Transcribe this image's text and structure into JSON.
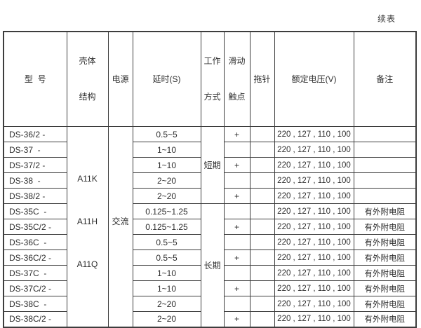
{
  "page_label": "续表",
  "table": {
    "headers": {
      "model": "型  号",
      "shell": [
        "壳体",
        "结构"
      ],
      "power": "电源",
      "delay": "延时(S)",
      "work_mode": [
        "工作",
        "方式"
      ],
      "sliding_contact": [
        "滑动",
        "触点"
      ],
      "drag_pin": "拖针",
      "rated_voltage": "额定电压(V)",
      "remark": "备注"
    },
    "shell_structure_labels": [
      "A11K",
      "A11H",
      "A11Q"
    ],
    "power_label": "交流",
    "work_modes": [
      {
        "label": "短期",
        "row_span": 5
      },
      {
        "label": "长期",
        "row_span": 8
      }
    ],
    "rows": [
      {
        "model": "DS-36/2 -",
        "delay": "0.5~5",
        "sliding_contact": "+",
        "drag_pin": "",
        "rated_voltage": "220 , 127 , 110 , 100",
        "remark": ""
      },
      {
        "model": "DS-37  -",
        "delay": "1~10",
        "sliding_contact": "",
        "drag_pin": "",
        "rated_voltage": "220 , 127 , 110 , 100",
        "remark": ""
      },
      {
        "model": "DS-37/2 -",
        "delay": "1~10",
        "sliding_contact": "+",
        "drag_pin": "",
        "rated_voltage": "220 , 127 , 110 , 100",
        "remark": ""
      },
      {
        "model": "DS-38  -",
        "delay": "2~20",
        "sliding_contact": "",
        "drag_pin": "",
        "rated_voltage": "220 , 127 , 110 , 100",
        "remark": ""
      },
      {
        "model": "DS-38/2 -",
        "delay": "2~20",
        "sliding_contact": "+",
        "drag_pin": "",
        "rated_voltage": "220 , 127 , 110 , 100",
        "remark": ""
      },
      {
        "model": "DS-35C  -",
        "delay": "0.125~1.25",
        "sliding_contact": "",
        "drag_pin": "",
        "rated_voltage": "220 , 127 , 110 , 100",
        "remark": "有外附电阻"
      },
      {
        "model": "DS-35C/2 -",
        "delay": "0.125~1.25",
        "sliding_contact": "+",
        "drag_pin": "",
        "rated_voltage": "220 , 127 , 110 , 100",
        "remark": "有外附电阻"
      },
      {
        "model": "DS-36C  -",
        "delay": "0.5~5",
        "sliding_contact": "",
        "drag_pin": "",
        "rated_voltage": "220 , 127 , 110 , 100",
        "remark": "有外附电阻"
      },
      {
        "model": "DS-36C/2 -",
        "delay": "0.5~5",
        "sliding_contact": "+",
        "drag_pin": "",
        "rated_voltage": "220 , 127 , 110 , 100",
        "remark": "有外附电阻"
      },
      {
        "model": "DS-37C  -",
        "delay": "1~10",
        "sliding_contact": "",
        "drag_pin": "",
        "rated_voltage": "220 , 127 , 110 , 100",
        "remark": "有外附电阻"
      },
      {
        "model": "DS-37C/2 -",
        "delay": "1~10",
        "sliding_contact": "+",
        "drag_pin": "",
        "rated_voltage": "220 , 127 , 110 , 100",
        "remark": "有外附电阻"
      },
      {
        "model": "DS-38C  -",
        "delay": "2~20",
        "sliding_contact": "",
        "drag_pin": "",
        "rated_voltage": "220 , 127 , 110 , 100",
        "remark": "有外附电阻"
      },
      {
        "model": "DS-38C/2 -",
        "delay": "2~20",
        "sliding_contact": "+",
        "drag_pin": "",
        "rated_voltage": "220 , 127 , 110 , 100",
        "remark": "有外附电阻"
      }
    ],
    "colors": {
      "border": "#3d3d3d",
      "text": "#2e2e2e",
      "background": "#ffffff"
    }
  }
}
